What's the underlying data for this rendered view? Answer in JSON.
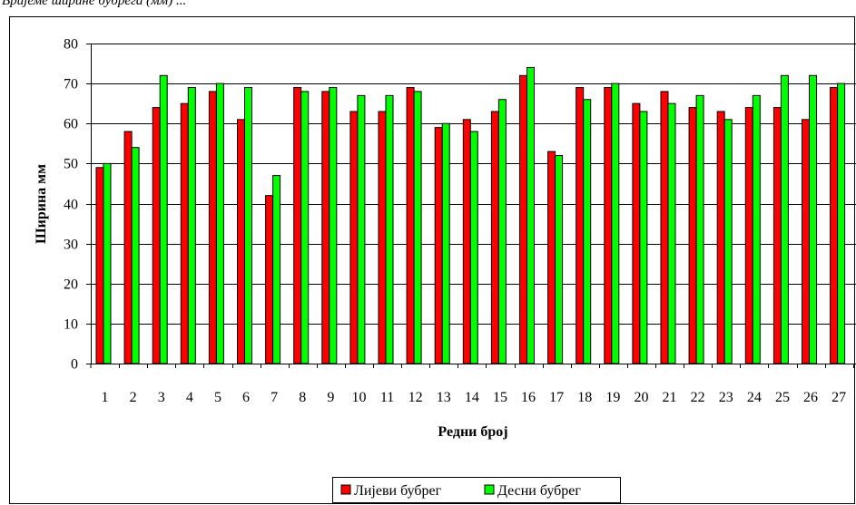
{
  "caption": "Вријеме ширине бубрега (мм) ...",
  "chart_data": {
    "type": "bar",
    "title": "",
    "xlabel": "Редни број",
    "ylabel": "Ширина мм",
    "ylim": [
      0,
      80
    ],
    "yticks": [
      0,
      10,
      20,
      30,
      40,
      50,
      60,
      70,
      80
    ],
    "grid": true,
    "legend_position": "bottom",
    "categories": [
      "1",
      "2",
      "3",
      "4",
      "5",
      "6",
      "7",
      "8",
      "9",
      "10",
      "11",
      "12",
      "13",
      "14",
      "15",
      "16",
      "17",
      "18",
      "19",
      "20",
      "21",
      "22",
      "23",
      "24",
      "25",
      "26",
      "27"
    ],
    "series": [
      {
        "name": "Лијеви бубрег",
        "color": "#ff0000",
        "values": [
          49,
          58,
          64,
          65,
          68,
          61,
          42,
          69,
          68,
          63,
          63,
          69,
          59,
          61,
          63,
          72,
          53,
          69,
          69,
          65,
          68,
          64,
          63,
          64,
          64,
          61,
          69
        ]
      },
      {
        "name": "Десни бубрег",
        "color": "#00ff00",
        "values": [
          50,
          54,
          72,
          69,
          70,
          69,
          47,
          68,
          69,
          67,
          67,
          68,
          60,
          58,
          66,
          74,
          52,
          66,
          70,
          63,
          65,
          67,
          61,
          67,
          72,
          72,
          70
        ]
      }
    ]
  }
}
